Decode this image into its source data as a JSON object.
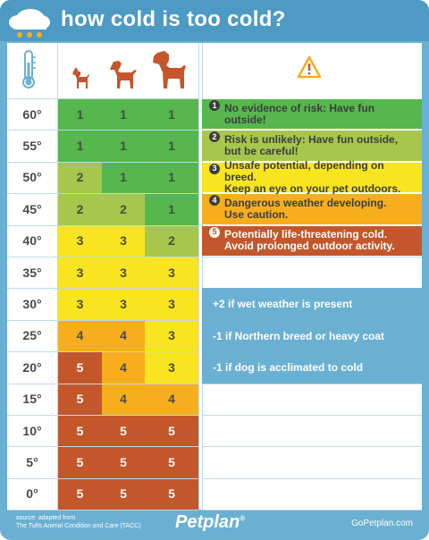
{
  "header": {
    "title": "how cold is too cold?",
    "icon": "snow-cloud-icon"
  },
  "column_icons": [
    "thermometer-icon",
    "small-dog-icon",
    "medium-dog-icon",
    "large-dog-icon",
    "warning-icon"
  ],
  "colors": {
    "1": "#55b74d",
    "2": "#a6c74c",
    "3": "#f9e51f",
    "4": "#f6ae1d",
    "5": "#c4562b"
  },
  "rows": [
    {
      "temp": "60°",
      "small": "1",
      "medium": "1",
      "large": "1"
    },
    {
      "temp": "55°",
      "small": "1",
      "medium": "1",
      "large": "1"
    },
    {
      "temp": "50°",
      "small": "2",
      "medium": "1",
      "large": "1"
    },
    {
      "temp": "45°",
      "small": "2",
      "medium": "2",
      "large": "1"
    },
    {
      "temp": "40°",
      "small": "3",
      "medium": "3",
      "large": "2"
    },
    {
      "temp": "35°",
      "small": "3",
      "medium": "3",
      "large": "3"
    },
    {
      "temp": "30°",
      "small": "3",
      "medium": "3",
      "large": "3"
    },
    {
      "temp": "25°",
      "small": "4",
      "medium": "4",
      "large": "3"
    },
    {
      "temp": "20°",
      "small": "5",
      "medium": "4",
      "large": "3"
    },
    {
      "temp": "15°",
      "small": "5",
      "medium": "4",
      "large": "4"
    },
    {
      "temp": "10°",
      "small": "5",
      "medium": "5",
      "large": "5"
    },
    {
      "temp": "5°",
      "small": "5",
      "medium": "5",
      "large": "5"
    },
    {
      "temp": "0°",
      "small": "5",
      "medium": "5",
      "large": "5"
    }
  ],
  "legend": [
    {
      "num": "1",
      "line1": "No evidence of risk: Have fun outside!",
      "line2": ""
    },
    {
      "num": "2",
      "line1": "Risk is unlikely: Have fun outside,",
      "line2": "but be careful!"
    },
    {
      "num": "3",
      "line1": "Unsafe potential, depending on breed.",
      "line2": "Keep an eye on your pet outdoors."
    },
    {
      "num": "4",
      "line1": "Dangerous weather developing.",
      "line2": "Use caution."
    },
    {
      "num": "5",
      "line1": "Potentially life-threatening cold.",
      "line2": "Avoid prolonged outdoor activity."
    }
  ],
  "modifiers": [
    "+2 if wet weather is present",
    "-1 if Northern breed or heavy coat",
    "-1 if dog is acclimated to cold"
  ],
  "footer": {
    "source_line1": "source: adapted from",
    "source_line2": "The Tufts Animal Condition and Care (TACC)",
    "brand": "Petplan",
    "brand_mark": "®",
    "url": "GoPetplan.com"
  }
}
